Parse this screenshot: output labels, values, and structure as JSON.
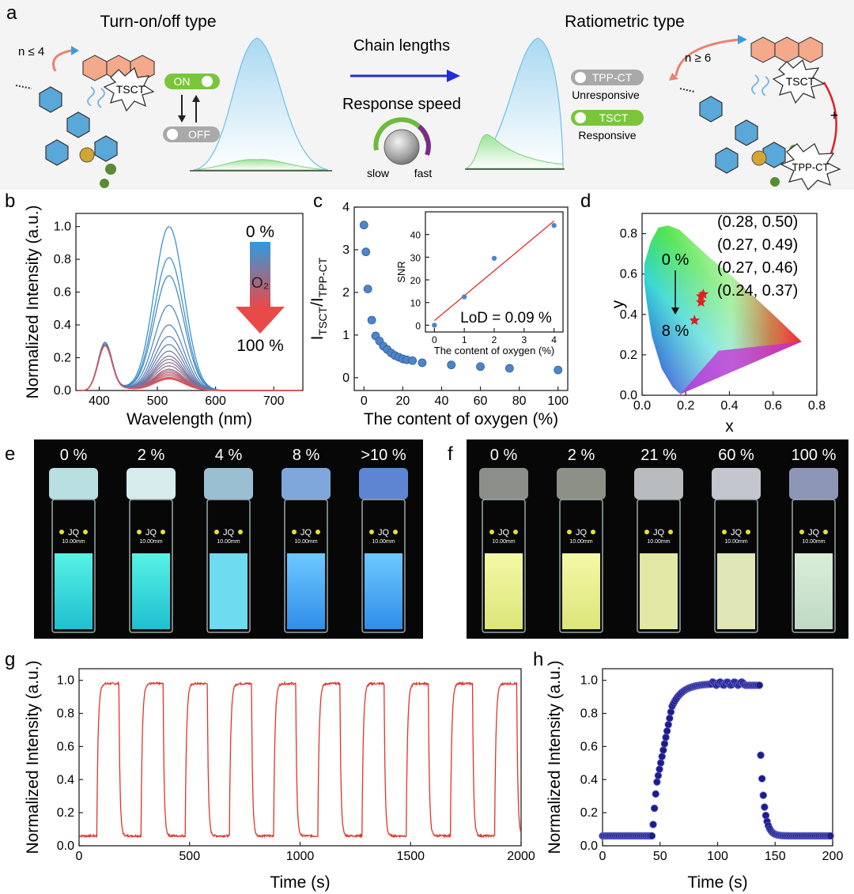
{
  "panels": {
    "a": {
      "letter": "a",
      "turn_title": "Turn-on/off type",
      "ratio_title": "Ratiometric type",
      "n_left": "n ≤ 4",
      "n_right": "n ≥ 6",
      "tsct": "TSCT",
      "on": "ON",
      "off": "OFF",
      "chain_lengths": "Chain lengths",
      "response_speed": "Response speed",
      "slow": "slow",
      "fast": "fast",
      "tppct_pill": "TPP-CT",
      "unresponsive": "Unresponsive",
      "tsct_pill": "TSCT",
      "responsive": "Responsive",
      "tppct_burst": "TPP-CT",
      "plus": "+",
      "colors": {
        "blue_peak": "#bfe2f4",
        "green_peak": "#c9efc4",
        "pill_green": "#7bc53b",
        "pill_grey": "#a9a9a9",
        "arrow": "#1f2fd6",
        "molecule_orange": "#f4a98b",
        "molecule_blue": "#5aa7d9"
      }
    },
    "b": {
      "letter": "b",
      "top_label": "0 %",
      "gas": "O₂",
      "bottom_label": "100 %"
    },
    "c": {
      "letter": "c",
      "inset_note": "LoD = 0.09 %",
      "ylabel_main": "I",
      "ylabel_sub1": "TSCT",
      "ylabel_slash": "/I",
      "ylabel_sub2": "TPP-CT"
    },
    "d": {
      "letter": "d",
      "start": "0 %",
      "end": "8 %",
      "coords": [
        "(0.28, 0.50)",
        "(0.27, 0.49)",
        "(0.27, 0.46)",
        "(0.24, 0.37)"
      ]
    },
    "e": {
      "letter": "e",
      "labels": [
        "0 %",
        "2 %",
        "4 %",
        "8 %",
        ">10 %"
      ],
      "vial_text": "JQ",
      "vial_sub": "10.00mm"
    },
    "f": {
      "letter": "f",
      "labels": [
        "0 %",
        "2 %",
        "21 %",
        "60 %",
        "100 %"
      ],
      "vial_text": "JQ",
      "vial_sub": "10.00mm"
    },
    "g": {
      "letter": "g"
    },
    "h": {
      "letter": "h"
    }
  },
  "chart_data": [
    {
      "id": "b",
      "type": "line",
      "xlabel": "Wavelength (nm)",
      "ylabel": "Normalized Intensity (a.u.)",
      "xlim": [
        360,
        750
      ],
      "ylim": [
        0,
        1.08
      ],
      "xticks": [
        "400",
        "500",
        "600",
        "700"
      ],
      "yticks": [
        "0.0",
        "0.2",
        "0.4",
        "0.6",
        "0.8",
        "1.0"
      ],
      "x_peak_1": 410,
      "x_peak_2": 520,
      "peak_410_values": [
        0.29,
        0.29,
        0.29,
        0.28,
        0.28,
        0.28,
        0.28,
        0.28,
        0.27,
        0.27,
        0.27,
        0.27,
        0.27,
        0.27,
        0.27,
        0.27,
        0.27,
        0.27,
        0.27,
        0.27
      ],
      "peak_520_values": [
        1.0,
        0.81,
        0.7,
        0.52,
        0.4,
        0.33,
        0.28,
        0.24,
        0.21,
        0.19,
        0.17,
        0.15,
        0.13,
        0.12,
        0.11,
        0.1,
        0.09,
        0.08,
        0.075,
        0.07
      ],
      "colors": [
        "#2b8bcf",
        "#e05255"
      ]
    },
    {
      "id": "c",
      "type": "scatter",
      "xlabel": "The content of oxygen (%)",
      "xlim": [
        -5,
        105
      ],
      "ylim": [
        -0.3,
        4
      ],
      "xticks": [
        "0",
        "20",
        "40",
        "60",
        "80",
        "100"
      ],
      "yticks": [
        "0",
        "1",
        "2",
        "3",
        "4"
      ],
      "x": [
        0,
        1,
        2,
        4,
        6,
        8,
        10,
        12,
        14,
        16,
        18,
        20,
        22,
        25,
        30,
        45,
        60,
        75,
        100
      ],
      "y": [
        3.58,
        2.95,
        2.08,
        1.35,
        0.98,
        0.86,
        0.74,
        0.66,
        0.58,
        0.52,
        0.48,
        0.44,
        0.42,
        0.4,
        0.35,
        0.3,
        0.26,
        0.22,
        0.18
      ],
      "inset": {
        "type": "scatter",
        "xlabel": "The content of oxygen (%)",
        "ylabel": "SNR",
        "xlim": [
          -0.3,
          4.3
        ],
        "ylim": [
          -3,
          50
        ],
        "xticks": [
          "0",
          "1",
          "2",
          "3",
          "4"
        ],
        "yticks": [
          "0",
          "10",
          "20",
          "30",
          "40"
        ],
        "x": [
          0,
          1,
          2,
          4
        ],
        "y": [
          0,
          12.5,
          29.5,
          44
        ],
        "fit": [
          [
            0,
            2
          ],
          [
            4,
            46
          ]
        ]
      }
    },
    {
      "id": "d",
      "type": "scatter",
      "xlabel": "x",
      "ylabel": "y",
      "xlim": [
        0,
        0.8
      ],
      "ylim": [
        0,
        0.9
      ],
      "xticks": [
        "0.0",
        "0.2",
        "0.4",
        "0.6",
        "0.8"
      ],
      "yticks": [
        "0.0",
        "0.2",
        "0.4",
        "0.6",
        "0.8"
      ],
      "x": [
        0.28,
        0.27,
        0.27,
        0.24
      ],
      "y": [
        0.5,
        0.49,
        0.46,
        0.37
      ]
    },
    {
      "id": "g",
      "type": "line",
      "xlabel": "Time (s)",
      "ylabel": "Normalized Intensity (a.u.)",
      "xlim": [
        0,
        2000
      ],
      "ylim": [
        0,
        1.07
      ],
      "xticks": [
        "0",
        "500",
        "1000",
        "1500",
        "2000"
      ],
      "yticks": [
        "0.0",
        "0.2",
        "0.4",
        "0.6",
        "0.8",
        "1.0"
      ],
      "cycle_starts": [
        80,
        280,
        480,
        680,
        880,
        1080,
        1280,
        1480,
        1680,
        1880
      ],
      "high": 0.98,
      "low": 0.06,
      "color": "#e0342b"
    },
    {
      "id": "h",
      "type": "scatter",
      "xlabel": "Time (s)",
      "ylabel": "Normalized Intensity (a.u.)",
      "xlim": [
        0,
        200
      ],
      "ylim": [
        0,
        1.07
      ],
      "xticks": [
        "0",
        "50",
        "100",
        "150",
        "200"
      ],
      "yticks": [
        "0.0",
        "0.2",
        "0.4",
        "0.6",
        "0.8",
        "1.0"
      ],
      "rise_start": 38,
      "off_time": 137,
      "high": 0.98,
      "low": 0.06,
      "color": "#1c1c8c"
    }
  ]
}
